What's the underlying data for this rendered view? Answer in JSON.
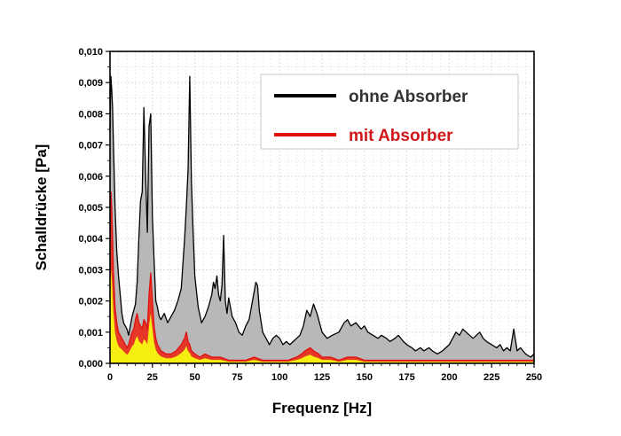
{
  "chart_data": {
    "type": "area",
    "xlabel": "Frequenz [Hz]",
    "ylabel": "Schalldrücke [Pa]",
    "xlim": [
      0,
      250
    ],
    "ylim": [
      0,
      0.01
    ],
    "x_ticks": [
      "0",
      "25",
      "50",
      "75",
      "100",
      "125",
      "150",
      "175",
      "200",
      "225",
      "250"
    ],
    "y_ticks": [
      "0,000",
      "0,001",
      "0,002",
      "0,003",
      "0,004",
      "0,005",
      "0,006",
      "0,007",
      "0,008",
      "0,009",
      "0,010"
    ],
    "grid": true,
    "legend_position": "top-right",
    "series": [
      {
        "name": "ohne Absorber",
        "color": "#000000",
        "fill": "#b8b8b8",
        "x": [
          0,
          0.5,
          1,
          1.5,
          2,
          3,
          4,
          5,
          6,
          7,
          8,
          9,
          10,
          11,
          12,
          13,
          14,
          15,
          16,
          17,
          18,
          19,
          20,
          21,
          22,
          23,
          24,
          25,
          26,
          27,
          28,
          29,
          30,
          32,
          34,
          36,
          38,
          40,
          42,
          43,
          44,
          45,
          46,
          47,
          48,
          49,
          50,
          52,
          54,
          56,
          58,
          60,
          61,
          62,
          63,
          64,
          65,
          66,
          67,
          68,
          69,
          70,
          72,
          74,
          76,
          78,
          80,
          82,
          84,
          86,
          87,
          88,
          90,
          92,
          94,
          96,
          98,
          100,
          102,
          104,
          106,
          108,
          110,
          112,
          114,
          116,
          118,
          120,
          122,
          125,
          128,
          131,
          135,
          138,
          140,
          142,
          145,
          148,
          150,
          152,
          155,
          158,
          160,
          163,
          165,
          168,
          170,
          173,
          175,
          178,
          180,
          183,
          185,
          188,
          190,
          193,
          196,
          198,
          200,
          202,
          204,
          206,
          208,
          210,
          212,
          214,
          216,
          218,
          220,
          222,
          225,
          228,
          230,
          232,
          234,
          236,
          238,
          240,
          242,
          245,
          248,
          250
        ],
        "y": [
          0.0075,
          0.0092,
          0.0088,
          0.0082,
          0.0071,
          0.005,
          0.0036,
          0.0028,
          0.0022,
          0.0016,
          0.0013,
          0.0012,
          0.0011,
          0.0009,
          0.0012,
          0.0015,
          0.0017,
          0.0019,
          0.0026,
          0.004,
          0.0052,
          0.0055,
          0.0082,
          0.006,
          0.0042,
          0.0076,
          0.008,
          0.0047,
          0.0033,
          0.002,
          0.0018,
          0.0015,
          0.0014,
          0.0016,
          0.0013,
          0.0015,
          0.0017,
          0.002,
          0.0024,
          0.0032,
          0.004,
          0.005,
          0.0062,
          0.0092,
          0.0058,
          0.0042,
          0.0028,
          0.0018,
          0.0013,
          0.0015,
          0.0018,
          0.0022,
          0.0026,
          0.0024,
          0.0028,
          0.0022,
          0.002,
          0.0025,
          0.0041,
          0.002,
          0.0016,
          0.0021,
          0.0015,
          0.0013,
          0.001,
          0.0009,
          0.0012,
          0.0014,
          0.002,
          0.0026,
          0.0025,
          0.0017,
          0.001,
          0.0008,
          0.0006,
          0.0008,
          0.0009,
          0.0008,
          0.0006,
          0.0007,
          0.0006,
          0.0007,
          0.0008,
          0.0009,
          0.0012,
          0.0017,
          0.0015,
          0.0019,
          0.0016,
          0.001,
          0.0008,
          0.0009,
          0.001,
          0.0013,
          0.0014,
          0.0012,
          0.0013,
          0.0011,
          0.0012,
          0.001,
          0.0009,
          0.0008,
          0.0009,
          0.0008,
          0.0007,
          0.0008,
          0.0009,
          0.0007,
          0.0006,
          0.0005,
          0.0004,
          0.0005,
          0.0004,
          0.0005,
          0.0004,
          0.0003,
          0.0004,
          0.0005,
          0.0006,
          0.0008,
          0.001,
          0.0009,
          0.0011,
          0.001,
          0.0009,
          0.0008,
          0.0009,
          0.001,
          0.0008,
          0.0007,
          0.0006,
          0.0005,
          0.0006,
          0.0004,
          0.0005,
          0.0004,
          0.0011,
          0.0004,
          0.0005,
          0.0003,
          0.0002,
          0.0003
        ]
      },
      {
        "name": "mit Absorber",
        "color": "#e01010",
        "fill": "#f5ee10",
        "x": [
          0,
          0.5,
          1,
          1.5,
          2,
          3,
          4,
          5,
          6,
          7,
          8,
          9,
          10,
          11,
          12,
          13,
          14,
          15,
          16,
          17,
          18,
          19,
          20,
          21,
          22,
          23,
          24,
          25,
          26,
          27,
          28,
          30,
          33,
          36,
          39,
          42,
          44,
          45,
          46,
          47,
          48,
          50,
          53,
          56,
          60,
          65,
          70,
          75,
          80,
          85,
          90,
          95,
          100,
          105,
          110,
          113,
          115,
          118,
          120,
          123,
          125,
          130,
          135,
          140,
          145,
          150,
          155,
          160,
          170,
          180,
          190,
          200,
          210,
          220,
          230,
          240,
          250
        ],
        "y": [
          0.0042,
          0.0055,
          0.005,
          0.004,
          0.003,
          0.0018,
          0.0013,
          0.001,
          0.0009,
          0.0008,
          0.0007,
          0.0006,
          0.0005,
          0.0006,
          0.0008,
          0.001,
          0.0011,
          0.0014,
          0.0016,
          0.0013,
          0.0012,
          0.0011,
          0.0014,
          0.0013,
          0.0011,
          0.0022,
          0.0029,
          0.002,
          0.0012,
          0.0008,
          0.0006,
          0.0004,
          0.0003,
          0.0003,
          0.0004,
          0.0006,
          0.0008,
          0.001,
          0.0007,
          0.0006,
          0.0004,
          0.0003,
          0.0002,
          0.0003,
          0.0002,
          0.0002,
          0.0001,
          0.0001,
          0.0001,
          0.0002,
          0.0001,
          0.0001,
          0.0001,
          0.0001,
          0.0002,
          0.0003,
          0.0004,
          0.0005,
          0.0004,
          0.0003,
          0.0002,
          0.0002,
          0.0001,
          0.0002,
          0.0002,
          0.0001,
          0.0001,
          0.0001,
          0.0001,
          0.0001,
          0.0001,
          0.0001,
          0.0001,
          0.0001,
          0.0001,
          0.0001,
          0.0001
        ]
      }
    ]
  },
  "legend": {
    "items": [
      {
        "label": "ohne Absorber",
        "color": "#000000",
        "text_color": "#333333"
      },
      {
        "label": "mit Absorber",
        "color": "#e01010",
        "text_color": "#d01818"
      }
    ]
  }
}
